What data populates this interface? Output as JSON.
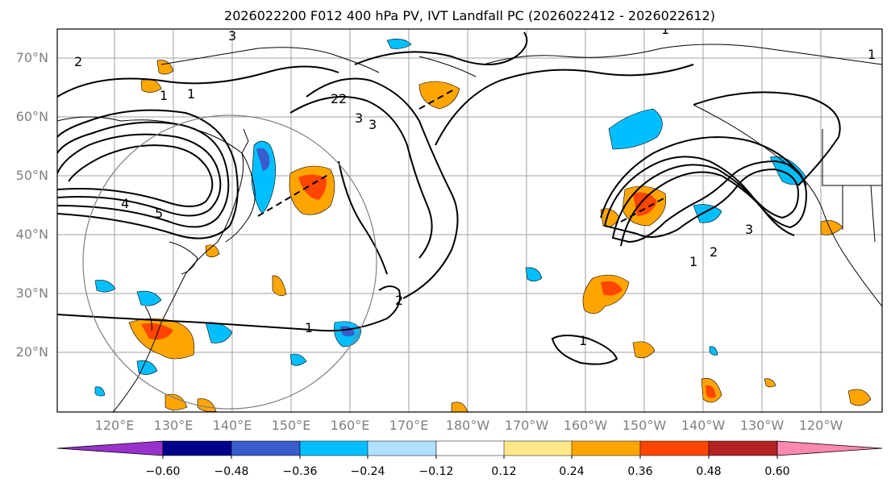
{
  "title": "2026022200 F012 400 hPa PV, IVT Landfall PC (2026022412 - 2026022612)",
  "lat_labels": [
    "70°N",
    "60°N",
    "50°N",
    "40°N",
    "30°N",
    "20°N"
  ],
  "lon_labels": [
    "120°E",
    "130°E",
    "140°E",
    "150°E",
    "160°E",
    "170°E",
    "180°W",
    "170°W",
    "160°W",
    "150°W",
    "140°W",
    "130°W",
    "120°W"
  ],
  "colorbar": {
    "ticks": [
      "−0.60",
      "−0.48",
      "−0.36",
      "−0.24",
      "−0.12",
      "0.12",
      "0.24",
      "0.36",
      "0.48",
      "0.60"
    ],
    "colors": [
      "#9932cc",
      "#00008b",
      "#3a5bcc",
      "#00bfff",
      "#b0e0ff",
      "#ffffff",
      "#ffe88a",
      "#ffa500",
      "#ff4500",
      "#b22222",
      "#ff88b0"
    ]
  },
  "contour_labels": [
    "1",
    "2",
    "3",
    "1",
    "2",
    "3",
    "4",
    "5",
    "1",
    "2",
    "3",
    "1",
    "1",
    "2",
    "3",
    "1",
    "2",
    "1"
  ],
  "colors": {
    "land": "#000000",
    "grid": "#a0a0a0",
    "label": "#808080",
    "circle": "#808080"
  }
}
